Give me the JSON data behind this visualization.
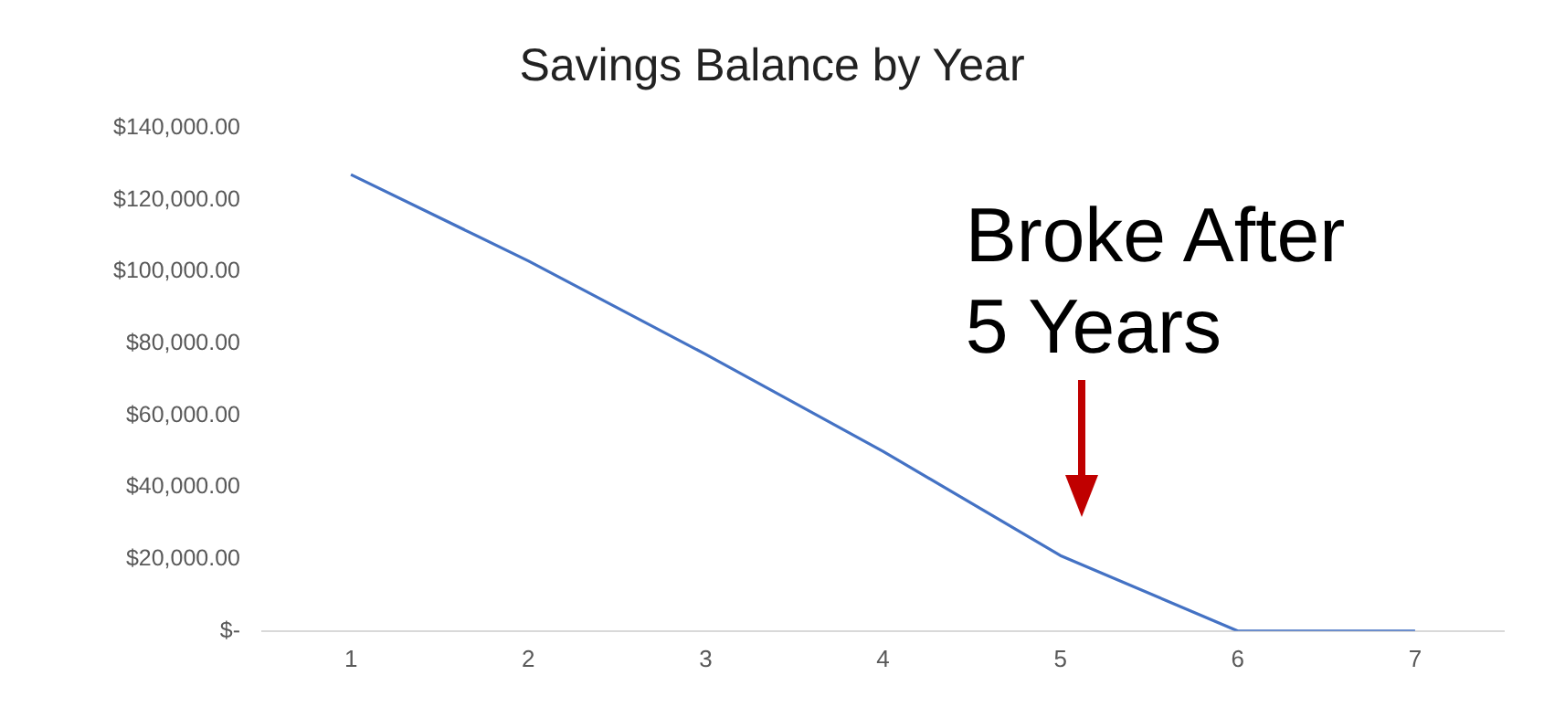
{
  "chart_data": {
    "type": "line",
    "title": "Savings Balance by Year",
    "categories": [
      "1",
      "2",
      "3",
      "4",
      "5",
      "6",
      "7"
    ],
    "series": [
      {
        "color": "#4472c4",
        "values": [
          127000,
          103000,
          77000,
          50000,
          21000,
          0,
          0
        ]
      }
    ],
    "ylim": [
      0,
      140000
    ],
    "yticks": [
      {
        "value": 0,
        "label": "$-"
      },
      {
        "value": 20000,
        "label": "$20,000.00"
      },
      {
        "value": 40000,
        "label": "$40,000.00"
      },
      {
        "value": 60000,
        "label": "$60,000.00"
      },
      {
        "value": 80000,
        "label": "$80,000.00"
      },
      {
        "value": 100000,
        "label": "$100,000.00"
      },
      {
        "value": 120000,
        "label": "$120,000.00"
      },
      {
        "value": 140000,
        "label": "$140,000.00"
      }
    ],
    "annotations": [
      {
        "text": "Broke After 5 Years",
        "x": "5",
        "y": 21000
      }
    ],
    "grid": false,
    "legend": false,
    "marker": "none",
    "line_style": "solid"
  }
}
